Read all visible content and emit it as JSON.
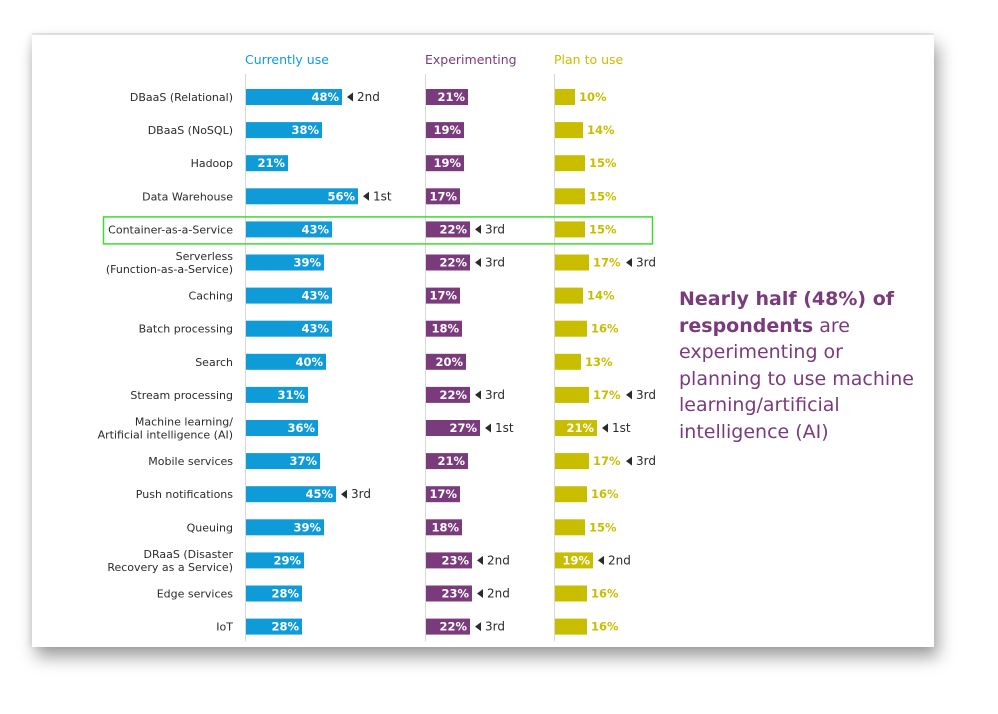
{
  "chart_data": {
    "type": "bar",
    "layout": "three-panel horizontal bars",
    "categories": [
      "DBaaS (Relational)",
      "DBaaS (NoSQL)",
      "Hadoop",
      "Data Warehouse",
      "Container-as-a-Service",
      "Serverless\n(Function-as-a-Service)",
      "Caching",
      "Batch processing",
      "Search",
      "Stream processing",
      "Machine learning/\nArtificial intelligence (AI)",
      "Mobile services",
      "Push notifications",
      "Queuing",
      "DRaaS (Disaster\nRecovery as a Service)",
      "Edge services",
      "IoT"
    ],
    "series": [
      {
        "name": "Currently use",
        "color": "#0e9bd8",
        "values": [
          48,
          38,
          21,
          56,
          43,
          39,
          43,
          43,
          40,
          31,
          36,
          37,
          45,
          39,
          29,
          28,
          28
        ],
        "value_labels": [
          "48%",
          "38%",
          "21%",
          "56%",
          "43%",
          "39%",
          "43%",
          "43%",
          "40%",
          "31%",
          "36%",
          "37%",
          "45%",
          "39%",
          "29%",
          "28%",
          "28%"
        ],
        "ranks": [
          "2nd",
          "",
          "",
          "1st",
          "",
          "",
          "",
          "",
          "",
          "",
          "",
          "",
          "3rd",
          "",
          "",
          "",
          ""
        ]
      },
      {
        "name": "Experimenting",
        "color": "#7a3b7c",
        "values": [
          21,
          19,
          19,
          17,
          22,
          22,
          17,
          18,
          20,
          22,
          27,
          21,
          17,
          18,
          23,
          23,
          22
        ],
        "value_labels": [
          "21%",
          "19%",
          "19%",
          "17%",
          "22%",
          "22%",
          "17%",
          "18%",
          "20%",
          "22%",
          "27%",
          "21%",
          "17%",
          "18%",
          "23%",
          "23%",
          "22%"
        ],
        "ranks": [
          "",
          "",
          "",
          "",
          "3rd",
          "3rd",
          "",
          "",
          "",
          "3rd",
          "1st",
          "",
          "",
          "",
          "2nd",
          "2nd",
          "3rd"
        ]
      },
      {
        "name": "Plan to use",
        "color": "#c9bd00",
        "values": [
          10,
          14,
          15,
          15,
          15,
          17,
          14,
          16,
          13,
          17,
          21,
          17,
          16,
          15,
          19,
          16,
          16
        ],
        "value_labels": [
          "10%",
          "14%",
          "15%",
          "15%",
          "15%",
          "17%",
          "14%",
          "16%",
          "13%",
          "17%",
          "21%",
          "17%",
          "16%",
          "15%",
          "19%",
          "16%",
          "16%"
        ],
        "ranks": [
          "",
          "",
          "",
          "",
          "",
          "3rd",
          "",
          "",
          "",
          "3rd",
          "1st",
          "3rd",
          "",
          "",
          "2nd",
          "",
          ""
        ]
      }
    ],
    "highlight": {
      "category": "Container-as-a-Service",
      "color": "#3ddc2f"
    },
    "xlim": [
      0,
      100
    ],
    "grid": false,
    "legend": "column headers at top"
  },
  "callout": {
    "bold_text": "Nearly half (48%) of respondents",
    "rest_text": " are experimenting or planning to use machine learning/artificial intelligence (AI)",
    "color": "#7a3b7c"
  }
}
